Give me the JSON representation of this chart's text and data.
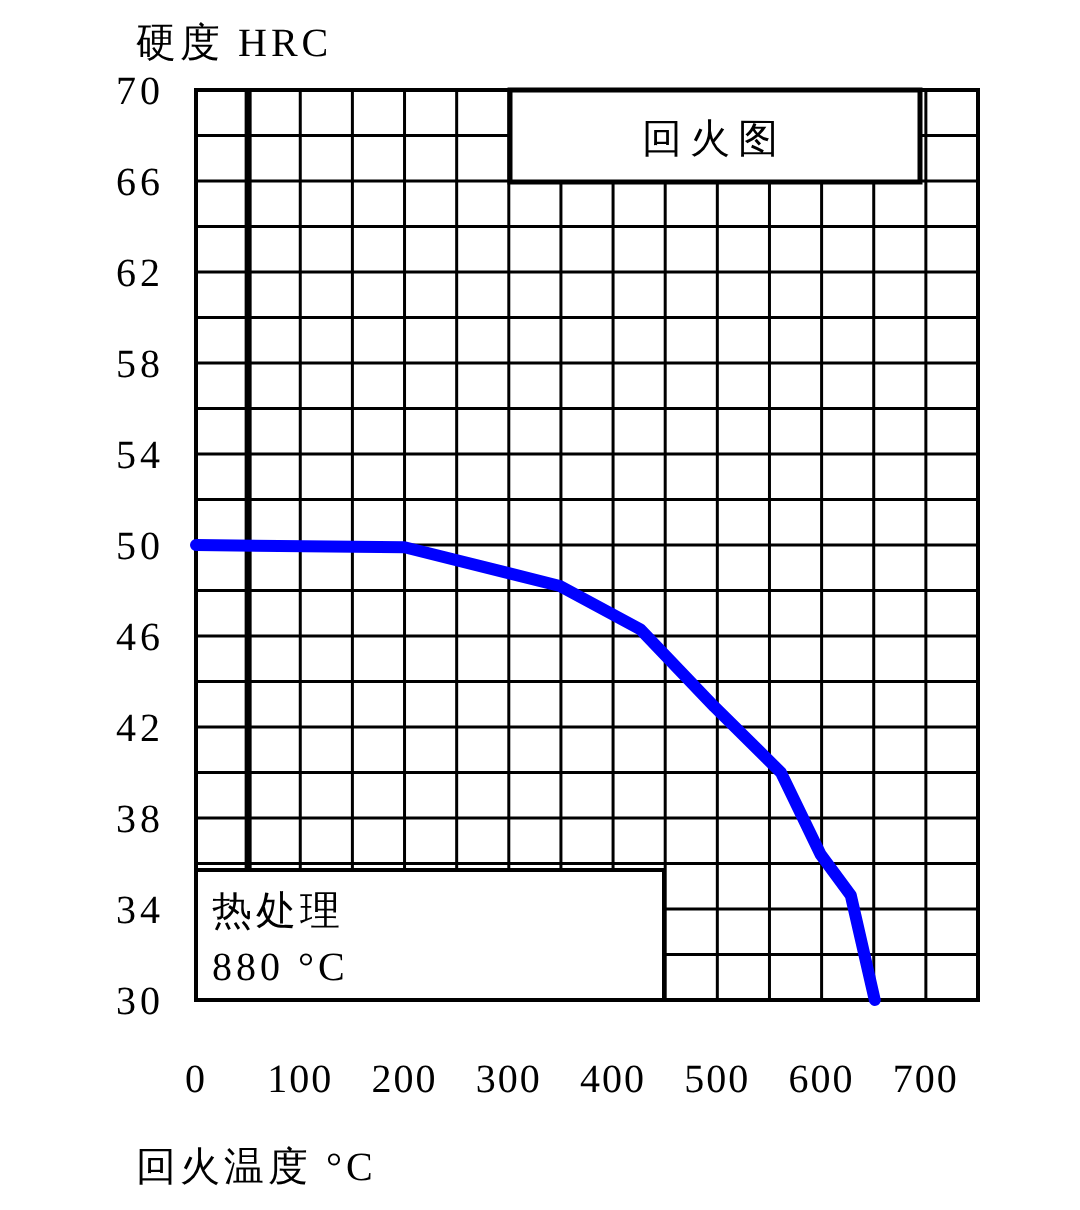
{
  "chart_data": {
    "type": "line",
    "title": "回火图",
    "xlabel": "回火温度 °C",
    "ylabel": "硬度 HRC",
    "annotations": [
      "热处理",
      "880 °C"
    ],
    "x": [
      0,
      200,
      349,
      426,
      497,
      561,
      599,
      628,
      651
    ],
    "series": [
      {
        "color": "#0000ff",
        "values": [
          50,
          49.9,
          48.2,
          46.3,
          42.9,
          40.0,
          36.4,
          34.6,
          30
        ]
      }
    ],
    "xlim": [
      0,
      750
    ],
    "xticks": [
      0,
      {
        "value": 50,
        "label": null
      },
      100,
      {
        "value": 150,
        "label": null
      },
      200,
      {
        "value": 250,
        "label": null
      },
      300,
      {
        "value": 350,
        "label": null
      },
      400,
      {
        "value": 450,
        "label": null
      },
      500,
      {
        "value": 550,
        "label": null
      },
      600,
      {
        "value": 650,
        "label": null
      },
      700,
      {
        "value": 750,
        "label": null
      }
    ],
    "ylim": [
      30,
      70
    ],
    "yticks": [
      30,
      {
        "value": 32,
        "label": null
      },
      34,
      {
        "value": 36,
        "label": null
      },
      38,
      {
        "value": 40,
        "label": null
      },
      42,
      {
        "value": 44,
        "label": null
      },
      46,
      {
        "value": 48,
        "label": null
      },
      50,
      {
        "value": 52,
        "label": null
      },
      54,
      {
        "value": 56,
        "label": null
      },
      58,
      {
        "value": 60,
        "label": null
      },
      62,
      {
        "value": 64,
        "label": null
      },
      66,
      {
        "value": 68,
        "label": null
      },
      70
    ],
    "grid": true,
    "ref_lines": [
      {
        "axis": "x",
        "value": 50
      }
    ],
    "marker": "none",
    "line_style": "solid"
  }
}
